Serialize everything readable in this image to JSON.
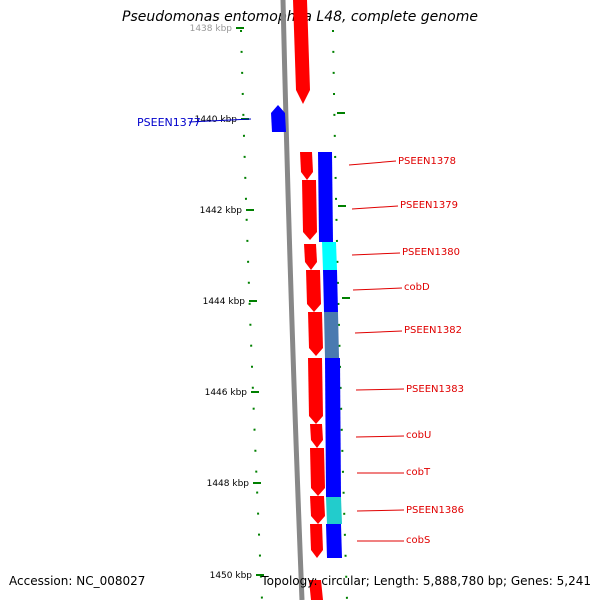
{
  "title": "Pseudomonas entomophila L48, complete genome",
  "footer": {
    "accession": "Accession: NC_008027",
    "summary": "Topology: circular; Length: 5,888,780 bp; Genes: 5,241"
  },
  "colors": {
    "backbone": "#888888",
    "forward_gene": "#ff0000",
    "reverse_gene": "#0000ff",
    "cyan_gene": "#00ffff",
    "steel_gene": "#4a7ab0",
    "teal_gene": "#22cccc",
    "ruler": "#008000",
    "forward_label": "#e00000",
    "reverse_label": "#0000cc"
  },
  "ticks": [
    {
      "label": "1438 kbp",
      "faint": true
    },
    {
      "label": "1440 kbp"
    },
    {
      "label": "1442 kbp"
    },
    {
      "label": "1444 kbp"
    },
    {
      "label": "1446 kbp"
    },
    {
      "label": "1448 kbp"
    },
    {
      "label": "1450 kbp"
    }
  ],
  "gene_labels": [
    {
      "text": "PSEEN1377",
      "strand": "reverse"
    },
    {
      "text": "PSEEN1378"
    },
    {
      "text": "PSEEN1379"
    },
    {
      "text": "PSEEN1380"
    },
    {
      "text": "cobD"
    },
    {
      "text": "PSEEN1382"
    },
    {
      "text": "PSEEN1383"
    },
    {
      "text": "cobU"
    },
    {
      "text": "cobT"
    },
    {
      "text": "PSEEN1386"
    },
    {
      "text": "cobS"
    }
  ]
}
